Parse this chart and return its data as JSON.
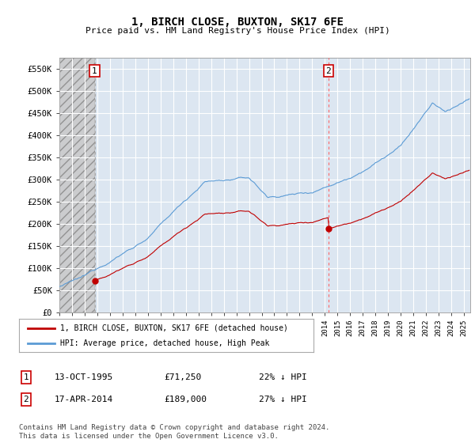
{
  "title": "1, BIRCH CLOSE, BUXTON, SK17 6FE",
  "subtitle": "Price paid vs. HM Land Registry's House Price Index (HPI)",
  "ylim": [
    0,
    575000
  ],
  "yticks": [
    0,
    50000,
    100000,
    150000,
    200000,
    250000,
    300000,
    350000,
    400000,
    450000,
    500000,
    550000
  ],
  "ytick_labels": [
    "£0",
    "£50K",
    "£100K",
    "£150K",
    "£200K",
    "£250K",
    "£300K",
    "£350K",
    "£400K",
    "£450K",
    "£500K",
    "£550K"
  ],
  "hpi_color": "#5b9bd5",
  "price_color": "#c00000",
  "dashed_line1_color": "#aaaaaa",
  "dashed_line2_color": "#ff6666",
  "plot_bg_color": "#dce6f1",
  "hatch_bg_color": "#c0c0c0",
  "transaction1_x": 1995.79,
  "transaction1_price": 71250,
  "transaction2_x": 2014.29,
  "transaction2_price": 189000,
  "xmin": 1993.0,
  "xmax": 2025.5,
  "legend_entries": [
    "1, BIRCH CLOSE, BUXTON, SK17 6FE (detached house)",
    "HPI: Average price, detached house, High Peak"
  ],
  "table_rows": [
    [
      "1",
      "13-OCT-1995",
      "£71,250",
      "22% ↓ HPI"
    ],
    [
      "2",
      "17-APR-2014",
      "£189,000",
      "27% ↓ HPI"
    ]
  ],
  "footnote": "Contains HM Land Registry data © Crown copyright and database right 2024.\nThis data is licensed under the Open Government Licence v3.0.",
  "background_color": "#ffffff"
}
